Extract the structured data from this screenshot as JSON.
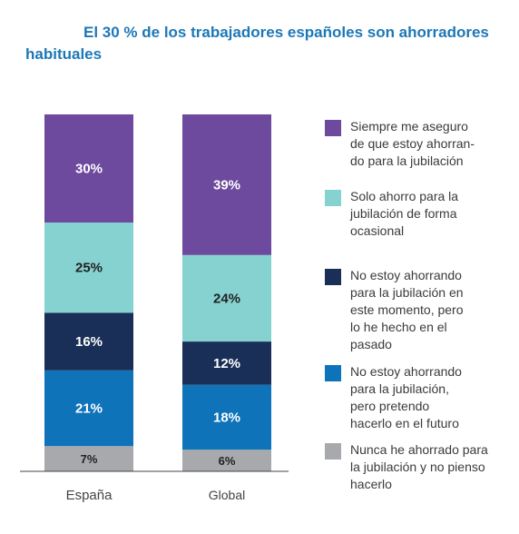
{
  "title": "El 30 % de los trabajadores españoles son ahorradores habituales",
  "chart_data": {
    "type": "bar",
    "stacked": true,
    "categories": [
      "España",
      "Global"
    ],
    "series": [
      {
        "name": "Nunca he ahorrado para la jubilación y no pienso hacerlo",
        "color": "#a7a9ac",
        "values": [
          7,
          6
        ],
        "labels": [
          "7%",
          "6%"
        ]
      },
      {
        "name": "No estoy ahorrando para la jubilación, pero pretendo hacerlo en el futuro",
        "color": "#0f73ba",
        "values": [
          21,
          18
        ],
        "labels": [
          "21%",
          "18%"
        ]
      },
      {
        "name": "No estoy ahorrando para la jubilación en este momento, pero lo he hecho en el pasado",
        "color": "#1a2f57",
        "values": [
          16,
          12
        ],
        "labels": [
          "16%",
          "12%"
        ]
      },
      {
        "name": "Solo ahorro para la jubilación de forma ocasional",
        "color": "#85d2d0",
        "values": [
          25,
          24
        ],
        "labels": [
          "25%",
          "24%"
        ]
      },
      {
        "name": "Siempre me aseguro de que estoy ahorrando para la jubilación",
        "color": "#6d4a9d",
        "values": [
          30,
          39
        ],
        "labels": [
          "30%",
          "39%"
        ]
      }
    ],
    "legend_position": "right",
    "grid": false
  },
  "legend": [
    {
      "color": "#6d4a9d",
      "lines": [
        "Siempre me aseguro",
        "de que estoy ahorran-",
        "do para la jubilación"
      ]
    },
    {
      "color": "#85d2d0",
      "lines": [
        "Solo ahorro para la",
        "jubilación de forma",
        "ocasional"
      ]
    },
    {
      "color": "#1a2f57",
      "lines": [
        "No estoy ahorrando",
        "para la jubilación en",
        "este momento, pero",
        "lo he hecho en el",
        "pasado"
      ]
    },
    {
      "color": "#0f73ba",
      "lines": [
        "No estoy ahorrando",
        "para la jubilación,",
        "pero pretendo",
        "hacerlo en el futuro"
      ]
    },
    {
      "color": "#a7a9ac",
      "lines": [
        "Nunca he ahorrado para",
        "la jubilación y no pienso",
        "hacerlo"
      ]
    }
  ]
}
